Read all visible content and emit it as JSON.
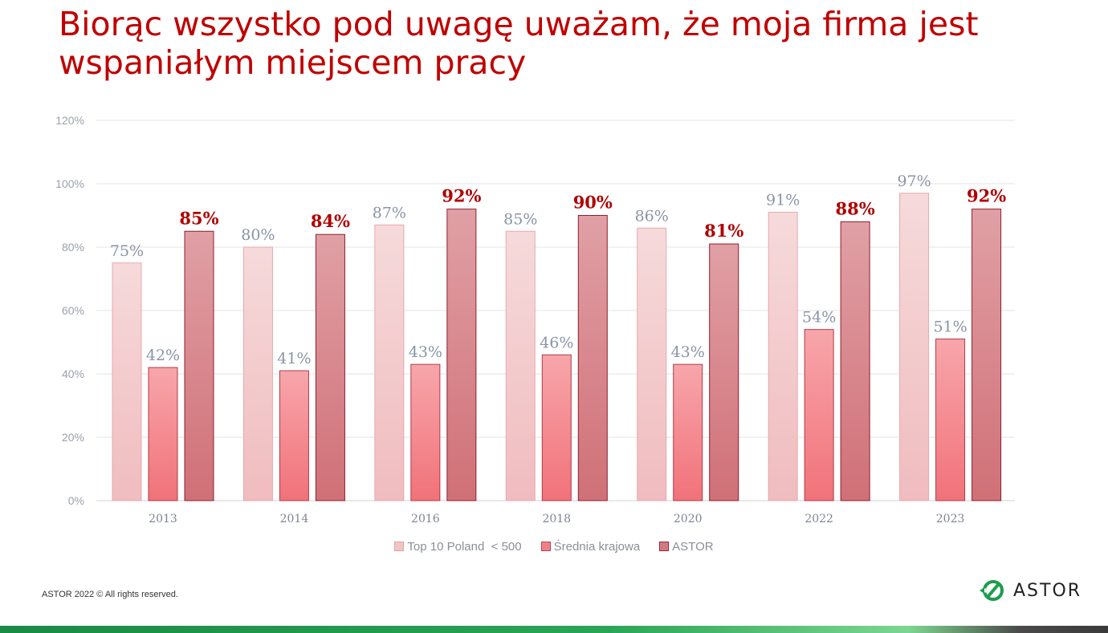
{
  "title": "Biorąc wszystko pod uwagę uważam, że moja firma jest wspaniałym miejscem pracy",
  "footer": "ASTOR 2022 © All rights reserved.",
  "logo_text": "ASTOR",
  "colors": {
    "title": "#c00000",
    "top10": "#f2c4c6",
    "srednia": "#f27f86",
    "astor": "#d57a83",
    "astor_label": "#b00000",
    "other_label": "#8a94a6"
  },
  "chart_data": {
    "type": "bar",
    "categories": [
      "2013",
      "2014",
      "2016",
      "2018",
      "2020",
      "2022",
      "2023"
    ],
    "series": [
      {
        "name": "Top 10 Poland  < 500",
        "values": [
          75,
          80,
          87,
          85,
          86,
          91,
          97
        ]
      },
      {
        "name": "Średnia krajowa",
        "values": [
          42,
          41,
          43,
          46,
          43,
          54,
          51
        ]
      },
      {
        "name": "ASTOR",
        "values": [
          85,
          84,
          92,
          90,
          81,
          88,
          92
        ]
      }
    ],
    "data_labels": [
      [
        "75%",
        "80%",
        "87%",
        "85%",
        "86%",
        "91%",
        "97%"
      ],
      [
        "42%",
        "41%",
        "43%",
        "46%",
        "43%",
        "54%",
        "51%"
      ],
      [
        "85%",
        "84%",
        "92%",
        "90%",
        "81%",
        "88%",
        "92%"
      ]
    ],
    "yticks": [
      "0%",
      "20%",
      "40%",
      "60%",
      "80%",
      "100%",
      "120%"
    ],
    "ylim": [
      0,
      120
    ],
    "grid": true,
    "legend_position": "bottom"
  }
}
